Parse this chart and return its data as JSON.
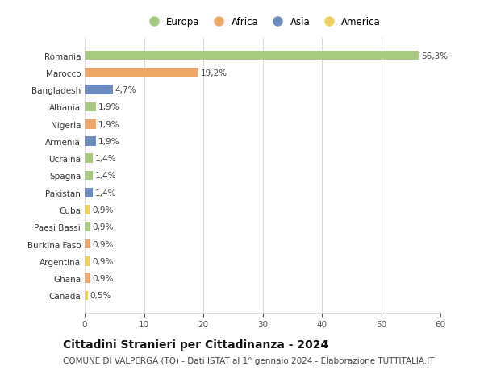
{
  "countries": [
    "Romania",
    "Marocco",
    "Bangladesh",
    "Albania",
    "Nigeria",
    "Armenia",
    "Ucraina",
    "Spagna",
    "Pakistan",
    "Cuba",
    "Paesi Bassi",
    "Burkina Faso",
    "Argentina",
    "Ghana",
    "Canada"
  ],
  "values": [
    56.3,
    19.2,
    4.7,
    1.9,
    1.9,
    1.9,
    1.4,
    1.4,
    1.4,
    0.9,
    0.9,
    0.9,
    0.9,
    0.9,
    0.5
  ],
  "labels": [
    "56,3%",
    "19,2%",
    "4,7%",
    "1,9%",
    "1,9%",
    "1,9%",
    "1,4%",
    "1,4%",
    "1,4%",
    "0,9%",
    "0,9%",
    "0,9%",
    "0,9%",
    "0,9%",
    "0,5%"
  ],
  "continents": [
    "Europa",
    "Africa",
    "Asia",
    "Europa",
    "Africa",
    "Asia",
    "Europa",
    "Europa",
    "Asia",
    "America",
    "Europa",
    "Africa",
    "America",
    "Africa",
    "America"
  ],
  "continent_colors": {
    "Europa": "#a8c97f",
    "Africa": "#f0a868",
    "Asia": "#6b8cbe",
    "America": "#f0d060"
  },
  "legend_order": [
    "Europa",
    "Africa",
    "Asia",
    "America"
  ],
  "xlim": [
    0,
    60
  ],
  "xticks": [
    0,
    10,
    20,
    30,
    40,
    50,
    60
  ],
  "title": "Cittadini Stranieri per Cittadinanza - 2024",
  "subtitle": "COMUNE DI VALPERGA (TO) - Dati ISTAT al 1° gennaio 2024 - Elaborazione TUTTITALIA.IT",
  "bg_color": "#ffffff",
  "grid_color": "#d8d8d8",
  "title_fontsize": 10,
  "subtitle_fontsize": 7.5,
  "label_fontsize": 7.5,
  "tick_fontsize": 7.5,
  "legend_fontsize": 8.5
}
